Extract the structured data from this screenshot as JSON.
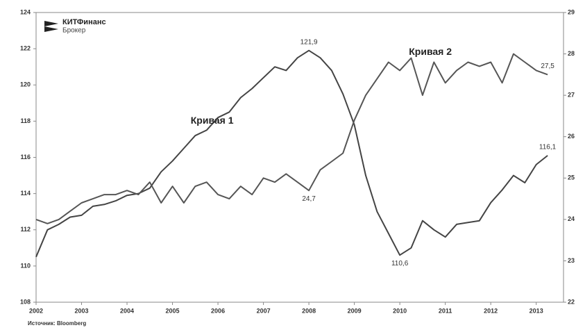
{
  "chart_data": {
    "type": "line",
    "logo": {
      "name": "КИТФинанс",
      "sub": "Брокер"
    },
    "source": "Источник: Bloomberg",
    "x": [
      2002,
      2002.25,
      2002.5,
      2002.75,
      2003,
      2003.25,
      2003.5,
      2003.75,
      2004,
      2004.25,
      2004.5,
      2004.75,
      2005,
      2005.25,
      2005.5,
      2005.75,
      2006,
      2006.25,
      2006.5,
      2006.75,
      2007,
      2007.25,
      2007.5,
      2007.75,
      2008,
      2008.25,
      2008.5,
      2008.75,
      2009,
      2009.25,
      2009.5,
      2009.75,
      2010,
      2010.25,
      2010.5,
      2010.75,
      2011,
      2011.25,
      2011.5,
      2011.75,
      2012,
      2012.25,
      2012.5,
      2012.75,
      2013,
      2013.25
    ],
    "xlim": [
      2002,
      2013.6
    ],
    "xticks": [
      2002,
      2003,
      2004,
      2005,
      2006,
      2007,
      2008,
      2009,
      2010,
      2011,
      2012,
      2013
    ],
    "ylim": [
      108,
      124
    ],
    "yticks": [
      108,
      110,
      112,
      114,
      116,
      118,
      120,
      122,
      124
    ],
    "y2lim": [
      22,
      29
    ],
    "y2ticks": [
      22,
      23,
      24,
      25,
      26,
      27,
      28,
      29
    ],
    "series": [
      {
        "name": "Кривая 1",
        "color": "#444444",
        "values": [
          110.5,
          112.0,
          112.3,
          112.7,
          112.8,
          113.3,
          113.4,
          113.6,
          113.9,
          114.0,
          114.3,
          115.2,
          115.8,
          116.5,
          117.2,
          117.5,
          118.2,
          118.5,
          119.3,
          119.8,
          120.4,
          121.0,
          120.8,
          121.5,
          121.9,
          121.5,
          120.8,
          119.5,
          117.8,
          115.0,
          113.0,
          111.8,
          110.6,
          111.0,
          112.5,
          112.0,
          111.6,
          112.3,
          112.4,
          112.5,
          113.5,
          114.2,
          115.0,
          114.6,
          115.6,
          116.1
        ]
      },
      {
        "name": "Кривая 2",
        "color": "#555555",
        "axis": "y2",
        "values": [
          24.0,
          23.9,
          24.0,
          24.2,
          24.4,
          24.5,
          24.6,
          24.6,
          24.7,
          24.6,
          24.9,
          24.4,
          24.8,
          24.4,
          24.8,
          24.9,
          24.6,
          24.5,
          24.8,
          24.6,
          25.0,
          24.9,
          25.1,
          24.9,
          24.7,
          25.2,
          25.4,
          25.6,
          26.4,
          27.0,
          27.4,
          27.8,
          27.6,
          27.9,
          27.0,
          27.8,
          27.3,
          27.6,
          27.8,
          27.7,
          27.8,
          27.3,
          28.0,
          27.8,
          27.6,
          27.5
        ]
      }
    ],
    "series_labels": [
      {
        "series": 0,
        "x": 2005.4,
        "y": 118
      },
      {
        "series": 1,
        "x": 2010.2,
        "y": 121.8
      }
    ],
    "annotations": [
      {
        "text": "121,9",
        "x": 2008,
        "y": 121.9
      },
      {
        "text": "24,7",
        "x": 2008,
        "y": 24.7,
        "axis": "y2"
      },
      {
        "text": "110,6",
        "x": 2010,
        "y": 110.6
      },
      {
        "text": "27,5",
        "x": 2013.25,
        "y": 27.5,
        "axis": "y2"
      },
      {
        "text": "116,1",
        "x": 2013.25,
        "y": 116.1
      }
    ]
  }
}
